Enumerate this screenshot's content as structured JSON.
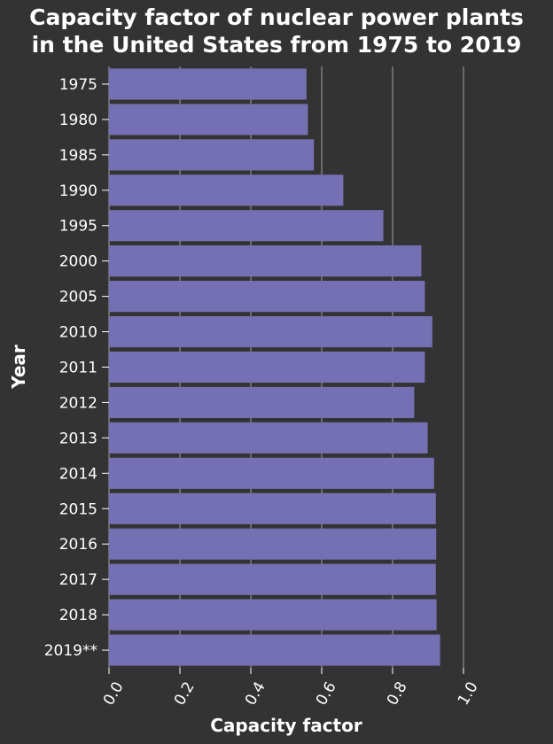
{
  "chart_data": {
    "type": "bar",
    "orientation": "horizontal",
    "title_lines": [
      "Capacity factor of nuclear power plants",
      "in the United States from 1975 to 2019"
    ],
    "xlabel": "Capacity factor",
    "ylabel": "Year",
    "xlim": [
      0,
      1.0
    ],
    "xticks": [
      "0.0",
      "0.2",
      "0.4",
      "0.6",
      "0.8",
      "1.0"
    ],
    "categories": [
      "1975",
      "1980",
      "1985",
      "1990",
      "1995",
      "2000",
      "2005",
      "2010",
      "2011",
      "2012",
      "2013",
      "2014",
      "2015",
      "2016",
      "2017",
      "2018",
      "2019**"
    ],
    "values": [
      0.557,
      0.561,
      0.578,
      0.661,
      0.774,
      0.881,
      0.891,
      0.912,
      0.891,
      0.861,
      0.899,
      0.917,
      0.922,
      0.923,
      0.922,
      0.924,
      0.934
    ],
    "grid": "vertical",
    "bar_color": "#7570b3",
    "background": "#333333",
    "text_color": "#ffffff"
  }
}
